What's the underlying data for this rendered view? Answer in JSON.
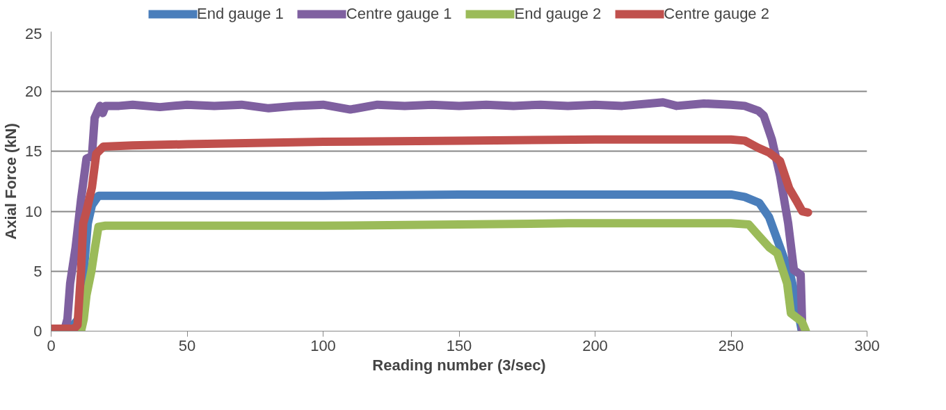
{
  "chart_data": {
    "type": "line",
    "xlabel": "Reading number (3/sec)",
    "ylabel": "Axial Force (kN)",
    "xlim": [
      0,
      300
    ],
    "ylim": [
      0,
      25
    ],
    "xticks": [
      0,
      50,
      100,
      150,
      200,
      250,
      300
    ],
    "yticks": [
      0,
      5,
      10,
      15,
      20,
      25
    ],
    "grid": "y",
    "legend": "top",
    "marker": "none",
    "line_style": "solid",
    "series": [
      {
        "name": "End gauge 1",
        "color": "#4a7ebb",
        "x": [
          0,
          7,
          10,
          12,
          13.5,
          15,
          17.4,
          20,
          50,
          100,
          150,
          200,
          250,
          255,
          260.4,
          264,
          268,
          272,
          274,
          276
        ],
        "values": [
          0.2,
          0.2,
          1,
          5,
          9,
          10.5,
          11.3,
          11.3,
          11.3,
          11.3,
          11.4,
          11.4,
          11.4,
          11.2,
          10.7,
          9.5,
          7,
          4.5,
          2.5,
          0
        ]
      },
      {
        "name": "Centre gauge 1",
        "color": "#7f60a0",
        "x": [
          0,
          5,
          6,
          7,
          9,
          11,
          13,
          15,
          16,
          17,
          18,
          19,
          20,
          25,
          30,
          40,
          50,
          60,
          70,
          80,
          90,
          100,
          110,
          120,
          130,
          140,
          150,
          160,
          170,
          180,
          190,
          200,
          210,
          220,
          225,
          230,
          240,
          250,
          255,
          260,
          262,
          265,
          268,
          271,
          273.1,
          275.6,
          276.2
        ],
        "values": [
          0.2,
          0.2,
          1,
          4,
          7,
          11,
          14.4,
          14.6,
          17.8,
          18.3,
          18.8,
          18.2,
          18.8,
          18.8,
          18.9,
          18.7,
          18.9,
          18.8,
          18.9,
          18.6,
          18.8,
          18.9,
          18.5,
          18.9,
          18.8,
          18.9,
          18.8,
          18.9,
          18.8,
          18.9,
          18.8,
          18.9,
          18.8,
          19,
          19.1,
          18.8,
          19,
          18.9,
          18.8,
          18.4,
          18,
          16,
          13,
          9,
          5.1,
          4.7,
          0
        ]
      },
      {
        "name": "End gauge 2",
        "color": "#9bbb59",
        "x": [
          11,
          12,
          13,
          14.8,
          16,
          17.4,
          20,
          50,
          100,
          150,
          190,
          200,
          250,
          256.5,
          260,
          264,
          267,
          270.6,
          272,
          276,
          277.5
        ],
        "values": [
          0,
          1,
          3,
          5,
          6.8,
          8.7,
          8.8,
          8.8,
          8.8,
          8.9,
          9,
          9,
          9,
          8.9,
          8,
          7,
          6.5,
          4,
          1.5,
          0.8,
          0
        ]
      },
      {
        "name": "Centre gauge 2",
        "color": "#c0504d",
        "x": [
          0,
          8.4,
          9.7,
          11,
          11.8,
          13,
          15,
          16.6,
          19.2,
          30,
          50,
          100,
          150,
          200,
          250,
          255,
          260,
          264,
          268,
          271.4,
          274,
          276.2,
          278.3
        ],
        "values": [
          0.2,
          0.2,
          0.5,
          5,
          9,
          10,
          12,
          14.8,
          15.4,
          15.5,
          15.6,
          15.8,
          15.9,
          16,
          16,
          15.9,
          15.3,
          14.9,
          14.2,
          11.9,
          10.9,
          10,
          9.9
        ]
      }
    ]
  }
}
